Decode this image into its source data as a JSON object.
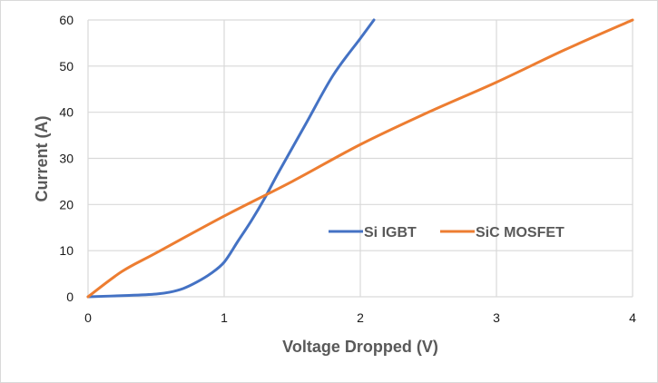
{
  "chart_data": {
    "type": "line",
    "title": "",
    "xlabel": "Voltage Dropped (V)",
    "ylabel": "Current (A)",
    "xlim": [
      0,
      4
    ],
    "ylim": [
      0,
      60
    ],
    "xticks": [
      0,
      1,
      2,
      3,
      4
    ],
    "yticks": [
      0,
      10,
      20,
      30,
      40,
      50,
      60
    ],
    "xtick_labels": [
      "0",
      "1",
      "2",
      "3",
      "4"
    ],
    "ytick_labels": [
      "0",
      "10",
      "20",
      "30",
      "40",
      "50",
      "60"
    ],
    "grid": true,
    "legend_position": "center-right",
    "series": [
      {
        "name": "Si IGBT",
        "color": "#4472c4",
        "x": [
          0,
          0.3,
          0.5,
          0.6,
          0.7,
          0.8,
          0.9,
          1.0,
          1.1,
          1.2,
          1.3,
          1.4,
          1.6,
          1.8,
          2.0,
          2.1
        ],
        "y": [
          0,
          0.3,
          0.6,
          1.0,
          1.8,
          3.2,
          5.0,
          7.5,
          12,
          16.5,
          21.5,
          27,
          37.5,
          48,
          56,
          60
        ]
      },
      {
        "name": "SiC MOSFET",
        "color": "#ed7d31",
        "x": [
          0,
          0.25,
          0.5,
          1.0,
          1.5,
          2.0,
          2.5,
          3.0,
          3.5,
          4.0
        ],
        "y": [
          0,
          5.5,
          9.5,
          17.5,
          25,
          33,
          40,
          46.5,
          53.5,
          60
        ]
      }
    ]
  }
}
